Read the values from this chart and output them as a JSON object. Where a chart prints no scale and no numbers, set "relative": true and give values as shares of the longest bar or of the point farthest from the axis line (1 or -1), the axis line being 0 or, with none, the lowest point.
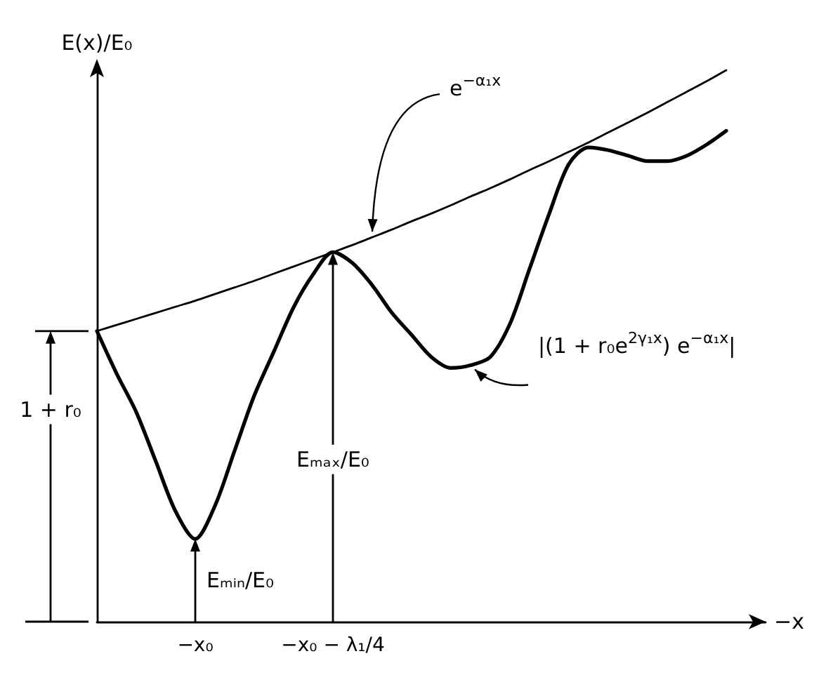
{
  "chart_data": {
    "type": "line",
    "relative": true,
    "xlabel": "−x",
    "ylabel": "E(x)/E₀",
    "categories": [
      null,
      null,
      null,
      null,
      null,
      "−x₀",
      null,
      null,
      null,
      null,
      null,
      null,
      "−x₀ − λ₁/4",
      null,
      null,
      null,
      null,
      null,
      null,
      null,
      null,
      null,
      null,
      null,
      null,
      null,
      null,
      null,
      null,
      null,
      null,
      null,
      null,
      null,
      null
    ],
    "series": [
      {
        "name": "|(1 + r₀e$^{2γ₁x}$) e$^{−α₁x}$|",
        "color": "#000000",
        "values": [
          0.527,
          0.45,
          0.38,
          0.29,
          0.2,
          0.15,
          0.21,
          0.31,
          0.41,
          0.49,
          0.57,
          0.63,
          0.67,
          0.65,
          0.61,
          0.56,
          0.52,
          0.48,
          0.46,
          0.465,
          0.48,
          0.54,
          0.64,
          0.74,
          0.83,
          0.86,
          0.855,
          0.845,
          0.835,
          0.835,
          0.845,
          0.865,
          0.89,
          null,
          null
        ]
      },
      {
        "color": "#000000",
        "values": [
          0.527,
          0.538,
          0.549,
          0.56,
          0.571,
          0.582,
          0.594,
          0.606,
          0.618,
          0.631,
          0.644,
          0.657,
          0.67,
          0.683,
          0.697,
          0.711,
          0.726,
          0.74,
          0.755,
          0.771,
          0.786,
          0.802,
          0.819,
          0.835,
          0.852,
          0.869,
          0.887,
          0.905,
          0.923,
          0.942,
          0.961,
          0.98,
          1.0,
          null,
          null
        ]
      }
    ],
    "annotations": [
      "1 + r₀",
      {
        "text": "Eₘᵢₙ/E₀",
        "x": "−x₀",
        "y": 0.15
      },
      "Eₘₐₓ/E₀",
      "e$^{−α₁x}$"
    ]
  }
}
